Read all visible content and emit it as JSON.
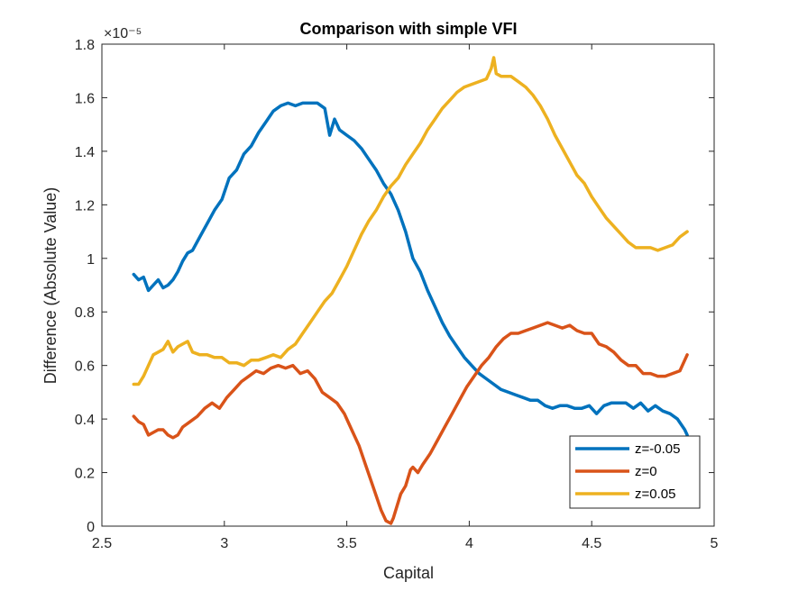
{
  "chart_data": {
    "type": "line",
    "title": "Comparison with simple VFI",
    "xlabel": "Capital",
    "ylabel": "Difference (Absolute Value)",
    "y_exponent_label": "×10⁻⁵",
    "xlim": [
      2.5,
      5
    ],
    "ylim": [
      0,
      1.8
    ],
    "xticks": [
      "2.5",
      "3",
      "3.5",
      "4",
      "4.5",
      "5"
    ],
    "yticks": [
      "0",
      "0.2",
      "0.4",
      "0.6",
      "0.8",
      "1",
      "1.2",
      "1.4",
      "1.6",
      "1.8"
    ],
    "grid": false,
    "legend_position": "bottom-right",
    "series": [
      {
        "name": "z=-0.05",
        "color": "#0072BD",
        "x": [
          2.63,
          2.65,
          2.67,
          2.69,
          2.71,
          2.73,
          2.75,
          2.77,
          2.79,
          2.81,
          2.83,
          2.85,
          2.87,
          2.9,
          2.93,
          2.96,
          2.99,
          3.02,
          3.05,
          3.08,
          3.11,
          3.14,
          3.17,
          3.2,
          3.23,
          3.26,
          3.29,
          3.32,
          3.35,
          3.38,
          3.41,
          3.43,
          3.45,
          3.47,
          3.5,
          3.53,
          3.56,
          3.59,
          3.62,
          3.65,
          3.68,
          3.71,
          3.74,
          3.77,
          3.8,
          3.83,
          3.86,
          3.89,
          3.92,
          3.95,
          3.98,
          4.01,
          4.04,
          4.07,
          4.1,
          4.13,
          4.16,
          4.19,
          4.22,
          4.25,
          4.28,
          4.31,
          4.34,
          4.37,
          4.4,
          4.43,
          4.46,
          4.49,
          4.52,
          4.55,
          4.58,
          4.61,
          4.64,
          4.67,
          4.7,
          4.73,
          4.76,
          4.79,
          4.82,
          4.85,
          4.88,
          4.89
        ],
        "y": [
          0.94,
          0.92,
          0.93,
          0.88,
          0.9,
          0.92,
          0.89,
          0.9,
          0.92,
          0.95,
          0.99,
          1.02,
          1.03,
          1.08,
          1.13,
          1.18,
          1.22,
          1.3,
          1.33,
          1.39,
          1.42,
          1.47,
          1.51,
          1.55,
          1.57,
          1.58,
          1.57,
          1.58,
          1.58,
          1.58,
          1.56,
          1.46,
          1.52,
          1.48,
          1.46,
          1.44,
          1.41,
          1.37,
          1.33,
          1.28,
          1.24,
          1.18,
          1.1,
          1.0,
          0.95,
          0.88,
          0.82,
          0.76,
          0.71,
          0.67,
          0.63,
          0.6,
          0.57,
          0.55,
          0.53,
          0.51,
          0.5,
          0.49,
          0.48,
          0.47,
          0.47,
          0.45,
          0.44,
          0.45,
          0.45,
          0.44,
          0.44,
          0.45,
          0.42,
          0.45,
          0.46,
          0.46,
          0.46,
          0.44,
          0.46,
          0.43,
          0.45,
          0.43,
          0.42,
          0.4,
          0.36,
          0.34
        ]
      },
      {
        "name": "z=0",
        "color": "#D95319",
        "x": [
          2.63,
          2.65,
          2.67,
          2.69,
          2.71,
          2.73,
          2.75,
          2.77,
          2.79,
          2.81,
          2.83,
          2.86,
          2.89,
          2.92,
          2.95,
          2.98,
          3.01,
          3.04,
          3.07,
          3.1,
          3.13,
          3.16,
          3.19,
          3.22,
          3.25,
          3.28,
          3.31,
          3.34,
          3.37,
          3.4,
          3.43,
          3.46,
          3.49,
          3.52,
          3.55,
          3.58,
          3.61,
          3.64,
          3.66,
          3.68,
          3.69,
          3.7,
          3.72,
          3.74,
          3.76,
          3.77,
          3.79,
          3.81,
          3.84,
          3.87,
          3.9,
          3.93,
          3.96,
          3.99,
          4.02,
          4.05,
          4.08,
          4.11,
          4.14,
          4.17,
          4.2,
          4.23,
          4.26,
          4.29,
          4.32,
          4.35,
          4.38,
          4.41,
          4.44,
          4.47,
          4.5,
          4.53,
          4.56,
          4.59,
          4.62,
          4.65,
          4.68,
          4.71,
          4.74,
          4.77,
          4.8,
          4.83,
          4.86,
          4.89
        ],
        "y": [
          0.41,
          0.39,
          0.38,
          0.34,
          0.35,
          0.36,
          0.36,
          0.34,
          0.33,
          0.34,
          0.37,
          0.39,
          0.41,
          0.44,
          0.46,
          0.44,
          0.48,
          0.51,
          0.54,
          0.56,
          0.58,
          0.57,
          0.59,
          0.6,
          0.59,
          0.6,
          0.57,
          0.58,
          0.55,
          0.5,
          0.48,
          0.46,
          0.42,
          0.36,
          0.3,
          0.22,
          0.14,
          0.06,
          0.02,
          0.01,
          0.03,
          0.06,
          0.12,
          0.15,
          0.21,
          0.22,
          0.2,
          0.23,
          0.27,
          0.32,
          0.37,
          0.42,
          0.47,
          0.52,
          0.56,
          0.6,
          0.63,
          0.67,
          0.7,
          0.72,
          0.72,
          0.73,
          0.74,
          0.75,
          0.76,
          0.75,
          0.74,
          0.75,
          0.73,
          0.72,
          0.72,
          0.68,
          0.67,
          0.65,
          0.62,
          0.6,
          0.6,
          0.57,
          0.57,
          0.56,
          0.56,
          0.57,
          0.58,
          0.64
        ]
      },
      {
        "name": "z=0.05",
        "color": "#EDB120",
        "x": [
          2.63,
          2.65,
          2.67,
          2.69,
          2.71,
          2.73,
          2.75,
          2.77,
          2.79,
          2.81,
          2.83,
          2.85,
          2.87,
          2.9,
          2.93,
          2.96,
          2.99,
          3.02,
          3.05,
          3.08,
          3.11,
          3.14,
          3.17,
          3.2,
          3.23,
          3.26,
          3.29,
          3.32,
          3.35,
          3.38,
          3.41,
          3.44,
          3.47,
          3.5,
          3.53,
          3.56,
          3.59,
          3.62,
          3.65,
          3.68,
          3.71,
          3.74,
          3.77,
          3.8,
          3.83,
          3.86,
          3.89,
          3.92,
          3.95,
          3.98,
          4.01,
          4.04,
          4.07,
          4.09,
          4.1,
          4.11,
          4.13,
          4.15,
          4.17,
          4.2,
          4.23,
          4.26,
          4.29,
          4.32,
          4.35,
          4.38,
          4.41,
          4.44,
          4.47,
          4.5,
          4.53,
          4.56,
          4.59,
          4.62,
          4.65,
          4.68,
          4.71,
          4.74,
          4.77,
          4.8,
          4.83,
          4.86,
          4.89
        ],
        "y": [
          0.53,
          0.53,
          0.56,
          0.6,
          0.64,
          0.65,
          0.66,
          0.69,
          0.65,
          0.67,
          0.68,
          0.69,
          0.65,
          0.64,
          0.64,
          0.63,
          0.63,
          0.61,
          0.61,
          0.6,
          0.62,
          0.62,
          0.63,
          0.64,
          0.63,
          0.66,
          0.68,
          0.72,
          0.76,
          0.8,
          0.84,
          0.87,
          0.92,
          0.97,
          1.03,
          1.09,
          1.14,
          1.18,
          1.23,
          1.27,
          1.3,
          1.35,
          1.39,
          1.43,
          1.48,
          1.52,
          1.56,
          1.59,
          1.62,
          1.64,
          1.65,
          1.66,
          1.67,
          1.71,
          1.75,
          1.69,
          1.68,
          1.68,
          1.68,
          1.66,
          1.64,
          1.61,
          1.57,
          1.52,
          1.46,
          1.41,
          1.36,
          1.31,
          1.28,
          1.23,
          1.19,
          1.15,
          1.12,
          1.09,
          1.06,
          1.04,
          1.04,
          1.04,
          1.03,
          1.04,
          1.05,
          1.08,
          1.1
        ]
      }
    ]
  }
}
